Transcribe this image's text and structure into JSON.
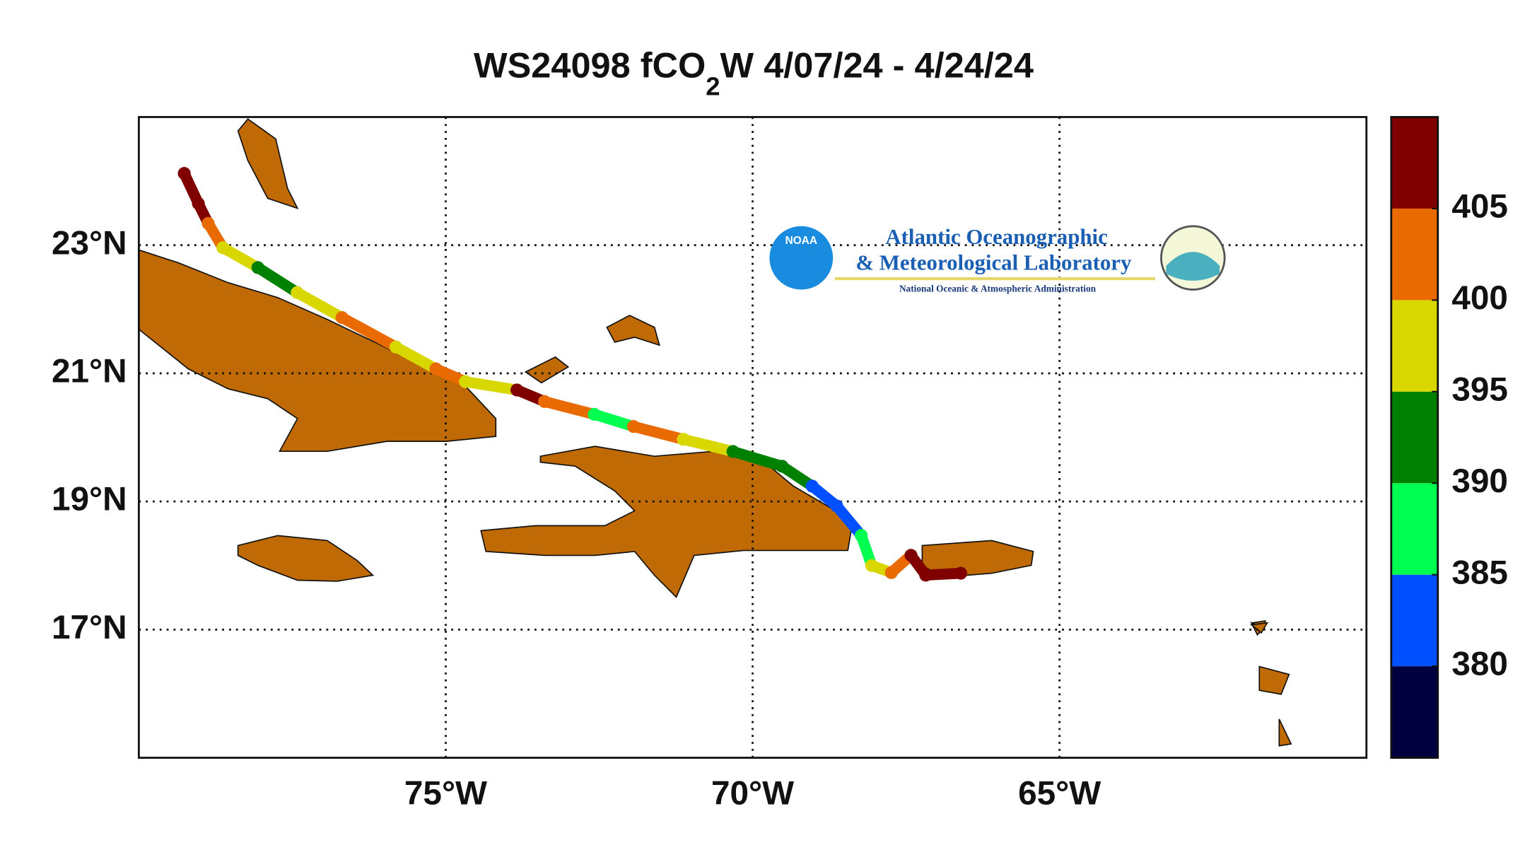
{
  "title": {
    "before": "WS24098 fCO",
    "subscript": "2",
    "after": "W 4/07/24 - 4/24/24"
  },
  "logo": {
    "badge": "NOAA",
    "line1": "Atlantic Oceanographic",
    "line2": "& Meteorological Laboratory",
    "line3": "National Oceanic & Atmospheric Administration"
  },
  "map": {
    "xlim": [
      -80,
      -60
    ],
    "ylim": [
      15,
      25
    ],
    "grid": true,
    "xticks": [
      {
        "value": -75,
        "label": "75°W"
      },
      {
        "value": -70,
        "label": "70°W"
      },
      {
        "value": -65,
        "label": "65°W"
      }
    ],
    "yticks": [
      {
        "value": 17,
        "label": "17°N"
      },
      {
        "value": 19,
        "label": "19°N"
      },
      {
        "value": 21,
        "label": "21°N"
      },
      {
        "value": 23,
        "label": "23°N"
      }
    ],
    "track": [
      {
        "lon": -79.26,
        "lat": 24.12,
        "fco2": 407
      },
      {
        "lon": -79.03,
        "lat": 23.65,
        "fco2": 407
      },
      {
        "lon": -78.87,
        "lat": 23.34,
        "fco2": 402
      },
      {
        "lon": -78.63,
        "lat": 22.96,
        "fco2": 397
      },
      {
        "lon": -78.06,
        "lat": 22.65,
        "fco2": 392
      },
      {
        "lon": -77.42,
        "lat": 22.26,
        "fco2": 397
      },
      {
        "lon": -76.69,
        "lat": 21.87,
        "fco2": 402
      },
      {
        "lon": -75.81,
        "lat": 21.41,
        "fco2": 397
      },
      {
        "lon": -75.16,
        "lat": 21.07,
        "fco2": 402
      },
      {
        "lon": -74.68,
        "lat": 20.87,
        "fco2": 397
      },
      {
        "lon": -73.84,
        "lat": 20.74,
        "fco2": 407
      },
      {
        "lon": -73.39,
        "lat": 20.56,
        "fco2": 402
      },
      {
        "lon": -72.58,
        "lat": 20.36,
        "fco2": 387
      },
      {
        "lon": -71.94,
        "lat": 20.17,
        "fco2": 402
      },
      {
        "lon": -71.13,
        "lat": 19.97,
        "fco2": 397
      },
      {
        "lon": -70.32,
        "lat": 19.78,
        "fco2": 392
      },
      {
        "lon": -69.52,
        "lat": 19.55,
        "fco2": 392
      },
      {
        "lon": -69.03,
        "lat": 19.24,
        "fco2": 382
      },
      {
        "lon": -68.63,
        "lat": 18.93,
        "fco2": 382
      },
      {
        "lon": -68.23,
        "lat": 18.47,
        "fco2": 387
      },
      {
        "lon": -68.06,
        "lat": 18.0,
        "fco2": 397
      },
      {
        "lon": -67.74,
        "lat": 17.89,
        "fco2": 402
      },
      {
        "lon": -67.42,
        "lat": 18.16,
        "fco2": 407
      },
      {
        "lon": -67.18,
        "lat": 17.85,
        "fco2": 407
      },
      {
        "lon": -66.61,
        "lat": 17.88,
        "fco2": 407
      }
    ],
    "colorbar": {
      "lim": [
        375,
        410
      ],
      "ticks": [
        380,
        385,
        390,
        395,
        400,
        405
      ],
      "boundaries": [
        375,
        380,
        385,
        390,
        395,
        400,
        405,
        410
      ],
      "colors": [
        "#000040",
        "#0050ff",
        "#00ff50",
        "#008000",
        "#d8d800",
        "#e86a00",
        "#800000"
      ]
    }
  }
}
